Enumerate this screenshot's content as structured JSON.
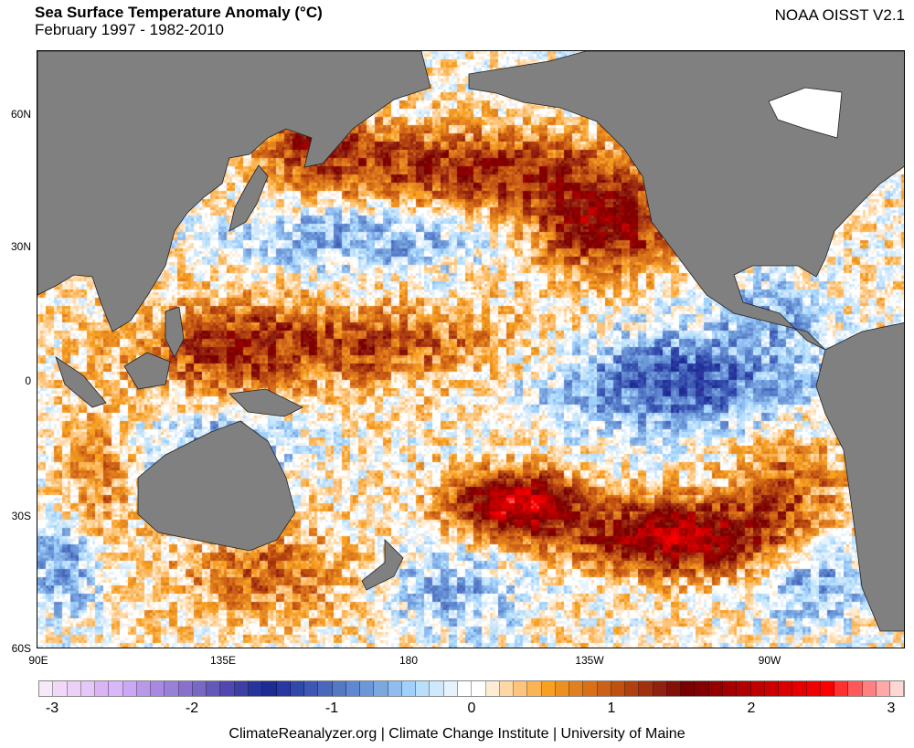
{
  "header": {
    "title": "Sea Surface Temperature Anomaly (°C)",
    "subtitle": "February 1997 - 1982-2010",
    "source": "NOAA OISST V2.1"
  },
  "axes": {
    "lat_labels": [
      "60N",
      "30N",
      "0",
      "30S",
      "60S"
    ],
    "lon_labels": [
      "90E",
      "135E",
      "180",
      "135W",
      "90W"
    ]
  },
  "colorbar": {
    "labels": [
      "-3",
      "-2",
      "-1",
      "0",
      "1",
      "2",
      "3"
    ],
    "range": [
      -3.1,
      3.1
    ],
    "colors": [
      "#f8e8f8",
      "#f2d8f8",
      "#ecd0f8",
      "#e4c8f8",
      "#dab4f4",
      "#d8b8f8",
      "#cca8f4",
      "#b898e8",
      "#a888e0",
      "#9880d8",
      "#8870cc",
      "#7868c4",
      "#6458b8",
      "#5048b0",
      "#3c40a4",
      "#28349c",
      "#1c2c94",
      "#2838a0",
      "#3048a8",
      "#3c58b4",
      "#4868bc",
      "#5478c4",
      "#6088d0",
      "#6c98d8",
      "#7ca8e0",
      "#90bcf0",
      "#a0d0fc",
      "#b8e0fc",
      "#d0e8fc",
      "#e6f2fc",
      "#ffffff",
      "#ffffff",
      "#ffecd4",
      "#fed8a4",
      "#fdc47c",
      "#fbb454",
      "#f8a020",
      "#ec9020",
      "#e08020",
      "#d87018",
      "#cc6018",
      "#c05010",
      "#b04010",
      "#a03010",
      "#902010",
      "#841008",
      "#780000",
      "#840000",
      "#940000",
      "#a40000",
      "#b00000",
      "#c00000",
      "#cc0000",
      "#d80000",
      "#e40000",
      "#f00000",
      "#fc0000",
      "#ff3030",
      "#ff5858",
      "#ff8080",
      "#ffa8a8",
      "#fcd8d4"
    ]
  },
  "colors": {
    "land": "#808080"
  },
  "footer": "ClimateReanalyzer.org | Climate Change Institute | University of Maine"
}
